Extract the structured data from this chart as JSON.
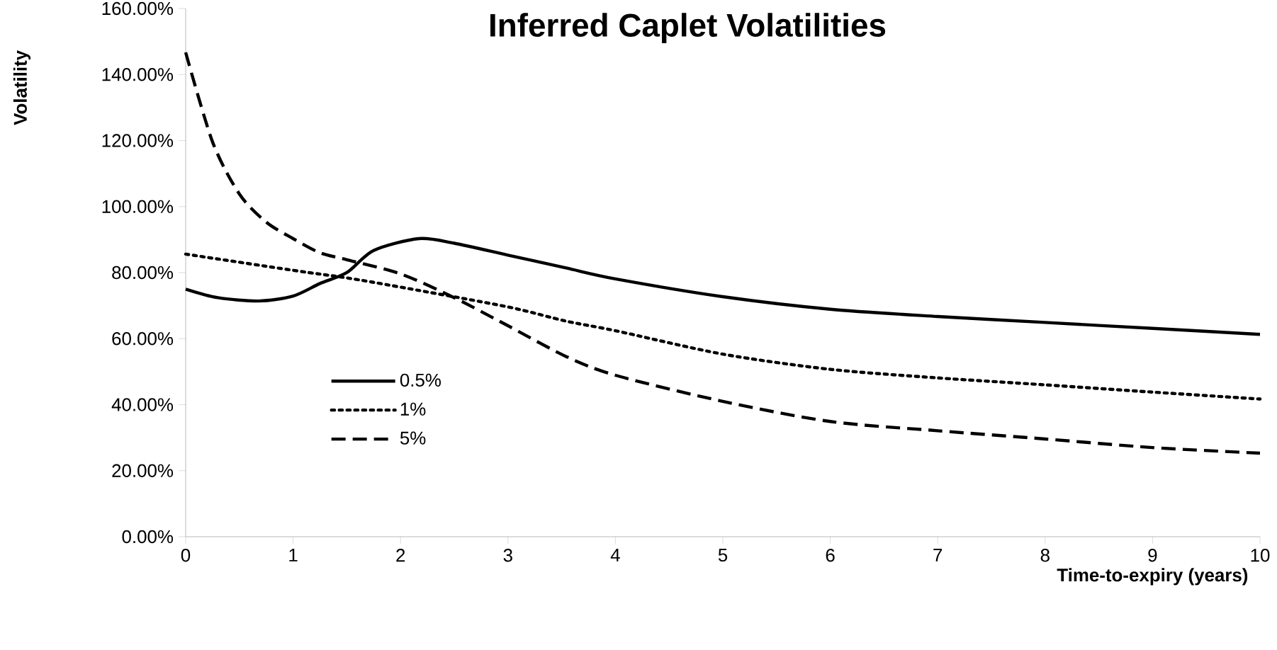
{
  "chart_data": {
    "type": "line",
    "title": "Inferred Caplet Volatilities",
    "xlabel": "Time-to-expiry (years)",
    "ylabel": "Volatility",
    "xlim": [
      0,
      10
    ],
    "xticks": [
      0,
      1,
      2,
      3,
      4,
      5,
      6,
      7,
      8,
      9,
      10
    ],
    "ylim": [
      0,
      160
    ],
    "yticks": [
      {
        "value": 0,
        "label": "0.00%"
      },
      {
        "value": 20,
        "label": "20.00%"
      },
      {
        "value": 40,
        "label": "40.00%"
      },
      {
        "value": 60,
        "label": "60.00%"
      },
      {
        "value": 80,
        "label": "80.00%"
      },
      {
        "value": 100,
        "label": "100.00%"
      },
      {
        "value": 120,
        "label": "120.00%"
      },
      {
        "value": 140,
        "label": "140.00%"
      },
      {
        "value": 160,
        "label": "160.00%"
      }
    ],
    "legend": "bottom left",
    "grid": false,
    "series": [
      {
        "name": "0.5%",
        "color": "#000000",
        "line_style": "solid",
        "x": [
          0,
          0.3,
          0.68,
          1,
          1.25,
          1.5,
          1.75,
          2.17,
          2.5,
          3,
          3.54,
          4,
          5,
          6,
          7,
          8,
          9,
          10
        ],
        "values": [
          75.0,
          72.4,
          71.4,
          72.9,
          76.7,
          80.0,
          86.7,
          90.3,
          88.9,
          85.3,
          81.4,
          78.1,
          72.7,
          68.9,
          66.7,
          64.9,
          63.1,
          61.3
        ]
      },
      {
        "name": "1%",
        "color": "#000000",
        "line_style": "dotted",
        "x": [
          0,
          1,
          1.5,
          2,
          3,
          3.54,
          4,
          5,
          6,
          7,
          8,
          9,
          10
        ],
        "values": [
          85.6,
          80.7,
          78.4,
          75.6,
          69.6,
          65.3,
          62.4,
          55.3,
          50.7,
          48.1,
          46.0,
          43.8,
          41.7
        ]
      },
      {
        "name": "5%",
        "color": "#000000",
        "line_style": "dashed",
        "x": [
          0,
          0.25,
          0.5,
          0.75,
          1,
          1.25,
          1.5,
          2,
          2.5,
          3,
          3.54,
          4,
          5,
          6,
          7,
          8,
          9,
          10
        ],
        "values": [
          146.7,
          119.6,
          103.8,
          95.3,
          90.3,
          86.0,
          83.9,
          79.6,
          72.4,
          63.9,
          54.6,
          48.9,
          41.0,
          34.9,
          32.1,
          29.6,
          27.0,
          25.3
        ]
      }
    ]
  }
}
